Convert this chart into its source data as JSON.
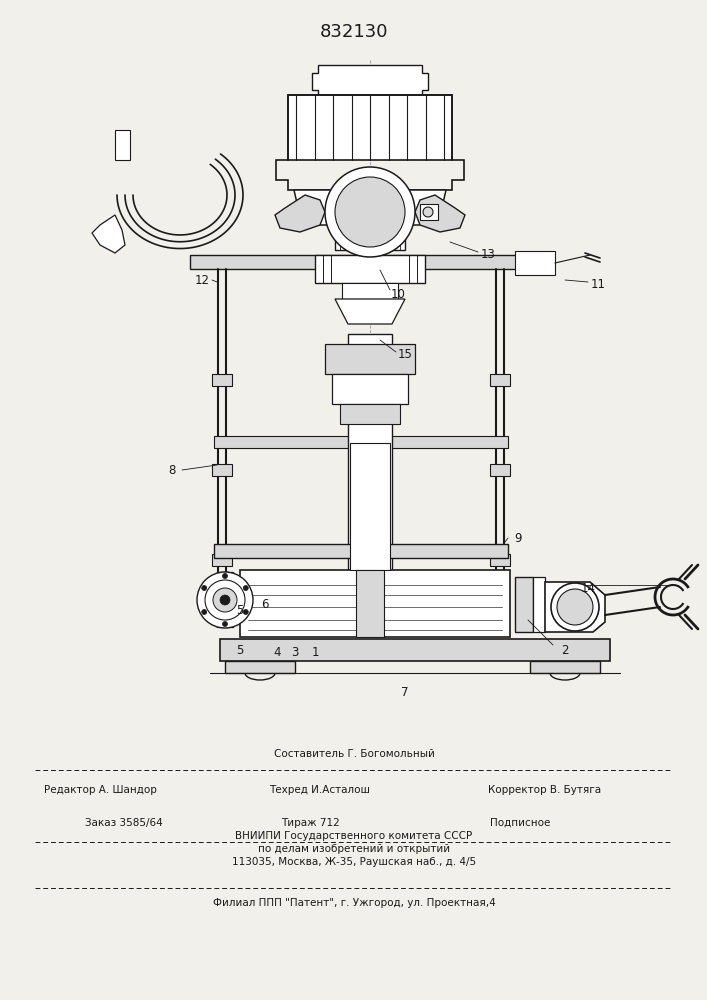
{
  "patent_number": "832130",
  "bg_color": "#f2f0eb",
  "lc": "#1a1a1a",
  "footer": {
    "comp": "Составитель Г. Богомольный",
    "editor": "Редактор А. Шандор",
    "tech": "Техред И.Асталош",
    "corr": "Корректор В. Бутяга",
    "order": "Заказ 3585/64",
    "tiraz": "Тираж 712",
    "podp": "Подписное",
    "org1": "ВНИИПИ Государственного комитета СССР",
    "org2": "по делам изобретений и открытий",
    "org3": "113035, Москва, Ж-35, Раушская наб., д. 4/5",
    "filial": "Филиал ППП \"Патент\", г. Ужгород, ул. Проектная,4"
  }
}
